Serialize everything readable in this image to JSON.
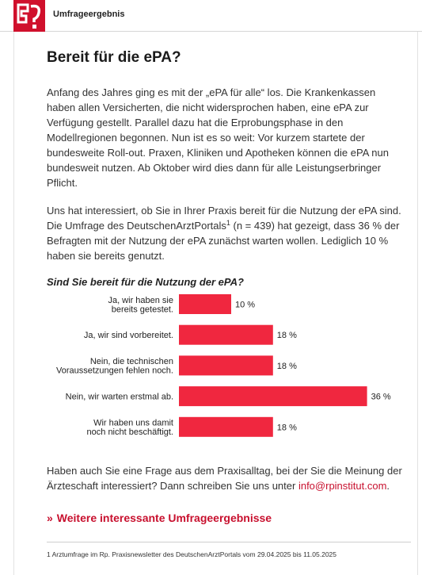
{
  "header": {
    "title": "Umfrageergebnis"
  },
  "article": {
    "title": "Bereit für die ePA?",
    "p1": "Anfang des Jahres ging es mit der „ePA für alle“ los. Die Krankenkassen haben allen Versicherten, die nicht widersprochen haben, eine ePA zur Verfügung gestellt. Parallel dazu hat die Erprobungsphase in den Modellregionen begonnen. Nun ist es so weit: Vor kurzem startete der bundesweite Roll-out. Praxen, Kliniken und Apotheken können die ePA nun bundesweit nutzen. Ab Oktober wird dies dann für alle Leistungserbringer Pflicht.",
    "p2_a": "Uns hat interessiert, ob Sie in Ihrer Praxis bereit für die Nutzung der ePA sind. Die Umfrage des DeutschenArztPortals",
    "p2_sup": "1",
    "p2_b": " (n = 439) hat gezeigt, dass 36 % der Befragten mit der Nutzung der ePA zunächst warten wollen. Lediglich 10 % haben sie bereits genutzt.",
    "question": "Sind Sie bereit für die Nutzung der ePA?"
  },
  "chart_data": {
    "type": "bar",
    "orientation": "horizontal",
    "categories": [
      [
        "Ja, wir haben sie",
        "bereits getestet."
      ],
      [
        "Ja, wir sind vorbereitet."
      ],
      [
        "Nein, die technischen",
        "Voraussetzungen fehlen noch."
      ],
      [
        "Nein, wir warten erstmal ab."
      ],
      [
        "Wir haben uns damit",
        "noch nicht beschäftigt."
      ]
    ],
    "values": [
      10,
      18,
      18,
      36,
      18
    ],
    "value_labels": [
      "10 %",
      "18 %",
      "18 %",
      "36 %",
      "18 %"
    ],
    "unit": "%",
    "color": "#f0273f",
    "grid": false
  },
  "cta": {
    "text": "Haben auch Sie eine Frage aus dem Praxisalltag, bei der Sie die Meinung der Ärzteschaft interessiert? Dann schreiben Sie uns unter ",
    "email": "info@rpinstitut.com",
    "end": "."
  },
  "more_link": {
    "arrow": "»",
    "label": "Weitere interessante Umfrageergebnisse"
  },
  "footnote": "1 Arztumfrage im Rp. Praxisnewsletter des DeutschenArztPortals vom 29.04.2025 bis 11.05.2025"
}
